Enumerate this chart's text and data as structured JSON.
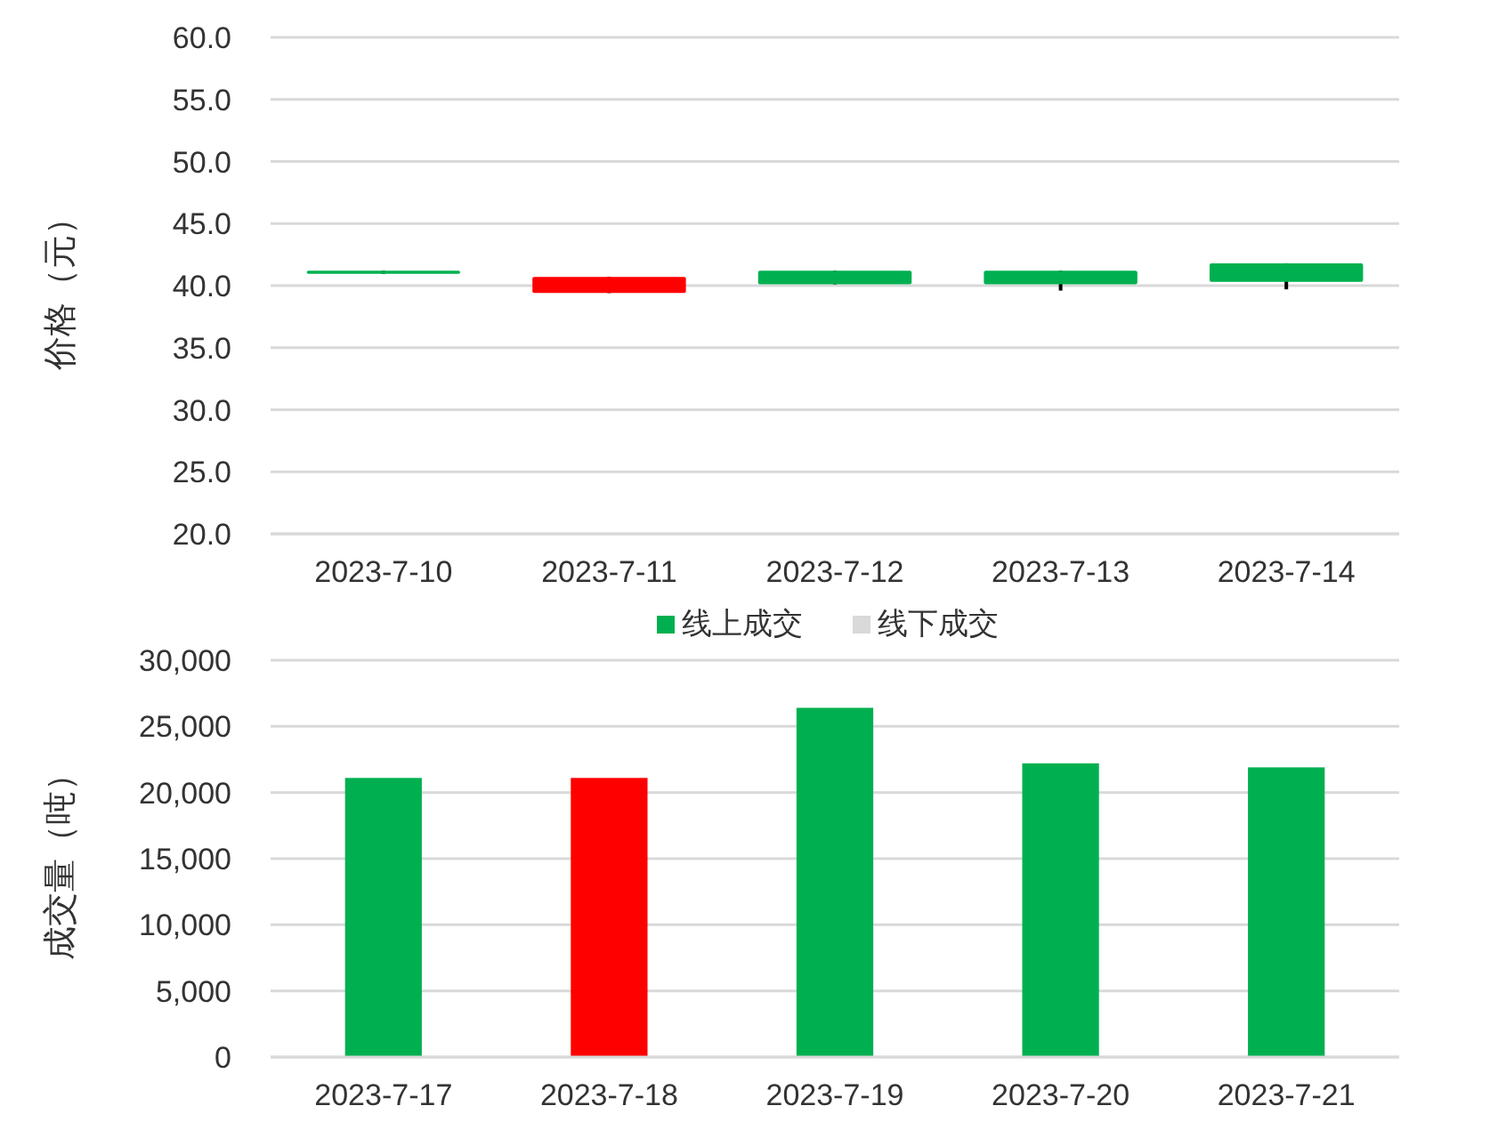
{
  "chart_data": [
    {
      "type": "candlestick",
      "ylabel": "价格（元）",
      "categories": [
        "2023-7-10",
        "2023-7-11",
        "2023-7-12",
        "2023-7-13",
        "2023-7-14"
      ],
      "ohlc": [
        [
          40.95,
          41.2,
          40.95,
          41.2
        ],
        [
          40.7,
          40.7,
          39.4,
          39.4
        ],
        [
          40.1,
          41.2,
          40.1,
          41.2
        ],
        [
          40.1,
          41.2,
          39.6,
          41.2
        ],
        [
          40.3,
          41.8,
          39.7,
          41.8
        ]
      ],
      "colors": [
        "#00b050",
        "#ff0000",
        "#00b050",
        "#00b050",
        "#00b050"
      ],
      "ylim": [
        20,
        60
      ],
      "yticks": [
        {
          "value": 20,
          "label": "20.0"
        },
        {
          "value": 25,
          "label": "25.0"
        },
        {
          "value": 30,
          "label": "30.0"
        },
        {
          "value": 35,
          "label": "35.0"
        },
        {
          "value": 40,
          "label": "40.0"
        },
        {
          "value": 45,
          "label": "45.0"
        },
        {
          "value": 50,
          "label": "50.0"
        },
        {
          "value": 55,
          "label": "55.0"
        },
        {
          "value": 60,
          "label": "60.0"
        }
      ],
      "grid": "y"
    },
    {
      "type": "bar",
      "ylabel": "成交量（吨）",
      "categories": [
        "2023-7-17",
        "2023-7-18",
        "2023-7-19",
        "2023-7-20",
        "2023-7-21"
      ],
      "series": [
        {
          "name": "线上成交",
          "color": "#00b050",
          "colors": [
            "#00b050",
            "#ff0000",
            "#00b050",
            "#00b050",
            "#00b050"
          ],
          "values": [
            21100,
            21100,
            26400,
            22200,
            21900
          ]
        },
        {
          "name": "线下成交",
          "color": "#d9d9d9",
          "values": [
            null,
            null,
            null,
            null,
            null
          ]
        }
      ],
      "ylim": [
        0,
        30000
      ],
      "yticks": [
        {
          "value": 0,
          "label": "0"
        },
        {
          "value": 5000,
          "label": "5,000"
        },
        {
          "value": 10000,
          "label": "10,000"
        },
        {
          "value": 15000,
          "label": "15,000"
        },
        {
          "value": 20000,
          "label": "20,000"
        },
        {
          "value": 25000,
          "label": "25,000"
        },
        {
          "value": 30000,
          "label": "30,000"
        }
      ],
      "grid": "y",
      "legend": "top"
    }
  ]
}
